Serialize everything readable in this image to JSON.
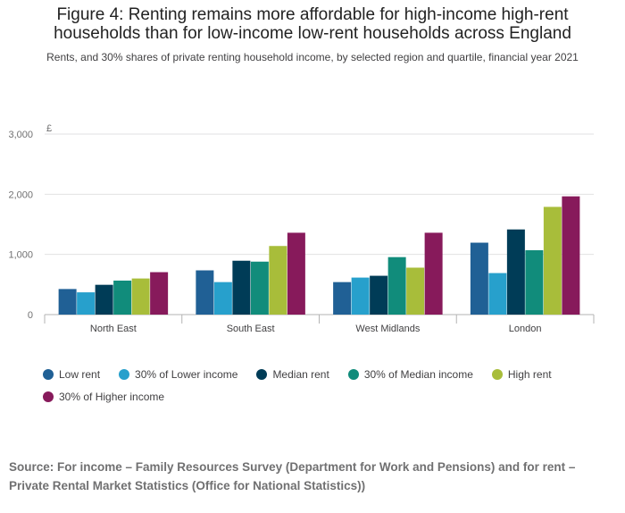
{
  "title_line1": "Figure 4: Renting remains more affordable for high-income high-rent",
  "title_line2": "households than for low-income low-rent households across England",
  "subtitle": "Rents, and 30% shares of private renting household income, by selected region and quartile, financial year 2021",
  "source_line1": "Source: For income – Family Resources Survey (Department for Work and Pensions) and for rent –",
  "source_line2": "Private Rental Market Statistics (Office for National Statistics))",
  "chart_data": {
    "type": "bar",
    "title": "Figure 4: Renting remains more affordable for high-income high-rent households than for low-income low-rent households across England",
    "subtitle": "Rents, and 30% shares of private renting household income, by selected region and quartile, financial year 2021",
    "xlabel": "",
    "ylabel": "£",
    "ylim": [
      0,
      3000
    ],
    "yticks": [
      0,
      1000,
      2000,
      3000
    ],
    "ytick_labels": [
      "0",
      "1,000",
      "2,000",
      "3,000"
    ],
    "grid": true,
    "legend_position": "bottom",
    "categories": [
      "North East",
      "South East",
      "West Midlands",
      "London"
    ],
    "series": [
      {
        "name": "Low rent",
        "color": "#206095",
        "values": [
          425,
          735,
          540,
          1195
        ]
      },
      {
        "name": "30% of Lower income",
        "color": "#27a0cc",
        "values": [
          370,
          540,
          615,
          690
        ]
      },
      {
        "name": "Median rent",
        "color": "#003c57",
        "values": [
          495,
          895,
          645,
          1415
        ]
      },
      {
        "name": "30% of Median income",
        "color": "#118c7b",
        "values": [
          565,
          880,
          955,
          1070
        ]
      },
      {
        "name": "High rent",
        "color": "#a8bd3a",
        "values": [
          600,
          1140,
          780,
          1790
        ]
      },
      {
        "name": "30% of Higher income",
        "color": "#871a5b",
        "values": [
          705,
          1360,
          1360,
          1965
        ]
      }
    ]
  }
}
